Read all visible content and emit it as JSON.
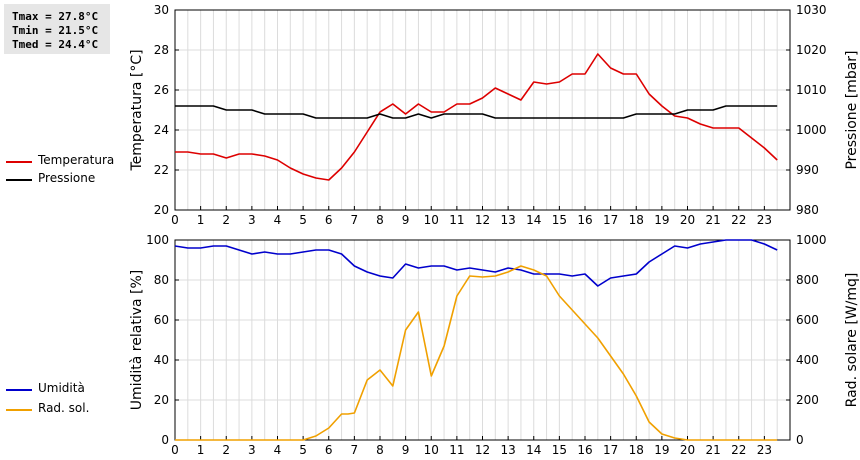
{
  "stats": {
    "tmax": "Tmax = 27.8°C",
    "tmin": "Tmin = 21.5°C",
    "tmed": "Tmed = 24.4°C"
  },
  "legend_top": [
    {
      "label": "Temperatura",
      "color": "#dd0000"
    },
    {
      "label": "Pressione",
      "color": "#000000"
    }
  ],
  "legend_bottom": [
    {
      "label": "Umidità",
      "color": "#0000cc"
    },
    {
      "label": "Rad. sol.",
      "color": "#f0a000"
    }
  ],
  "chart_data": [
    {
      "type": "line",
      "xlim": [
        0,
        24
      ],
      "x_ticks": [
        "0",
        "1",
        "2",
        "3",
        "4",
        "5",
        "6",
        "7",
        "8",
        "9",
        "10",
        "11",
        "12",
        "13",
        "14",
        "15",
        "16",
        "17",
        "18",
        "19",
        "20",
        "21",
        "22",
        "23"
      ],
      "ylabel": "Temperatura [°C]",
      "ylim": [
        20,
        30
      ],
      "y_ticks": [
        "20",
        "22",
        "24",
        "26",
        "28",
        "30"
      ],
      "y2label": "Pressione [mbar]",
      "y2lim": [
        980,
        1030
      ],
      "y2_ticks": [
        "980",
        "990",
        "1000",
        "1010",
        "1020",
        "1030"
      ],
      "grid": true,
      "series": [
        {
          "name": "Temperatura",
          "axis": "left",
          "color": "#dd0000",
          "x": [
            0,
            0.5,
            1,
            1.5,
            2,
            2.5,
            3,
            3.5,
            4,
            4.5,
            5,
            5.5,
            6,
            6.5,
            7,
            7.5,
            8,
            8.5,
            9,
            9.5,
            10,
            10.5,
            11,
            11.5,
            12,
            12.5,
            13,
            13.5,
            14,
            14.5,
            15,
            15.5,
            16,
            16.5,
            17,
            17.5,
            18,
            18.5,
            19,
            19.5,
            20,
            20.5,
            21,
            21.5,
            22,
            22.5,
            23,
            23.5
          ],
          "values": [
            22.9,
            22.9,
            22.8,
            22.8,
            22.6,
            22.8,
            22.8,
            22.7,
            22.5,
            22.1,
            21.8,
            21.6,
            21.5,
            22.1,
            22.9,
            23.9,
            24.9,
            25.3,
            24.8,
            25.3,
            24.9,
            24.9,
            25.3,
            25.3,
            25.6,
            26.1,
            25.8,
            25.5,
            26.4,
            26.3,
            26.4,
            26.8,
            26.8,
            27.8,
            27.1,
            26.8,
            26.8,
            25.8,
            25.2,
            24.7,
            24.6,
            24.3,
            24.1,
            24.1,
            24.1,
            23.6,
            23.1,
            22.5
          ]
        },
        {
          "name": "Pressione",
          "axis": "right",
          "color": "#000000",
          "x": [
            0,
            1,
            1.5,
            2,
            3,
            3.5,
            4,
            5,
            5.5,
            6,
            7,
            7.5,
            8,
            8.5,
            9,
            9.5,
            10,
            10.5,
            11,
            12,
            12.5,
            13,
            14,
            15,
            16,
            17,
            17.5,
            18,
            19,
            19.5,
            20,
            21,
            21.5,
            22,
            23,
            23.5
          ],
          "values": [
            1006,
            1006,
            1006,
            1005,
            1005,
            1004,
            1004,
            1004,
            1003,
            1003,
            1003,
            1003,
            1004,
            1003,
            1003,
            1004,
            1003,
            1004,
            1004,
            1004,
            1003,
            1003,
            1003,
            1003,
            1003,
            1003,
            1003,
            1004,
            1004,
            1004,
            1005,
            1005,
            1006,
            1006,
            1006,
            1006
          ]
        }
      ]
    },
    {
      "type": "line",
      "xlim": [
        0,
        24
      ],
      "x_ticks": [
        "0",
        "1",
        "2",
        "3",
        "4",
        "5",
        "6",
        "7",
        "8",
        "9",
        "10",
        "11",
        "12",
        "13",
        "14",
        "15",
        "16",
        "17",
        "18",
        "19",
        "20",
        "21",
        "22",
        "23"
      ],
      "ylabel": "Umidità relativa [%]",
      "ylim": [
        0,
        100
      ],
      "y_ticks": [
        "0",
        "20",
        "40",
        "60",
        "80",
        "100"
      ],
      "y2label": "Rad. solare [W/mq]",
      "y2lim": [
        0,
        1000
      ],
      "y2_ticks": [
        "0",
        "200",
        "400",
        "600",
        "800",
        "1000"
      ],
      "grid": true,
      "series": [
        {
          "name": "Umidità",
          "axis": "left",
          "color": "#0000cc",
          "x": [
            0,
            0.5,
            1,
            1.5,
            2,
            2.5,
            3,
            3.5,
            4,
            4.5,
            5,
            5.5,
            6,
            6.5,
            7,
            7.5,
            8,
            8.5,
            9,
            9.5,
            10,
            10.5,
            11,
            11.5,
            12,
            12.5,
            13,
            13.5,
            14,
            14.5,
            15,
            15.5,
            16,
            16.5,
            17,
            17.5,
            18,
            18.5,
            19,
            19.5,
            20,
            20.5,
            21,
            21.5,
            22,
            22.5,
            23,
            23.5
          ],
          "values": [
            97,
            96,
            96,
            97,
            97,
            95,
            93,
            94,
            93,
            93,
            94,
            95,
            95,
            93,
            87,
            84,
            82,
            81,
            88,
            86,
            87,
            87,
            85,
            86,
            85,
            84,
            86,
            85,
            83,
            83,
            83,
            82,
            83,
            77,
            81,
            82,
            83,
            89,
            93,
            97,
            96,
            98,
            99,
            100,
            100,
            100,
            98,
            95
          ]
        },
        {
          "name": "Rad. sol.",
          "axis": "right",
          "color": "#f0a000",
          "x": [
            0,
            1,
            2,
            3,
            4,
            5,
            5.5,
            6,
            6.5,
            6.75,
            7,
            7.5,
            8,
            8.5,
            9,
            9.5,
            10,
            10.5,
            11,
            11.5,
            12,
            12.5,
            13,
            13.5,
            14,
            14.5,
            15,
            15.5,
            16,
            16.5,
            17,
            17.5,
            18,
            18.5,
            19,
            19.5,
            20,
            21,
            22,
            23,
            23.5
          ],
          "values": [
            0,
            0,
            0,
            0,
            0,
            0,
            20,
            60,
            130,
            130,
            135,
            300,
            350,
            270,
            550,
            640,
            320,
            470,
            720,
            820,
            815,
            820,
            840,
            870,
            850,
            820,
            720,
            650,
            580,
            510,
            420,
            330,
            220,
            90,
            30,
            10,
            0,
            0,
            0,
            0,
            0
          ]
        }
      ]
    }
  ]
}
